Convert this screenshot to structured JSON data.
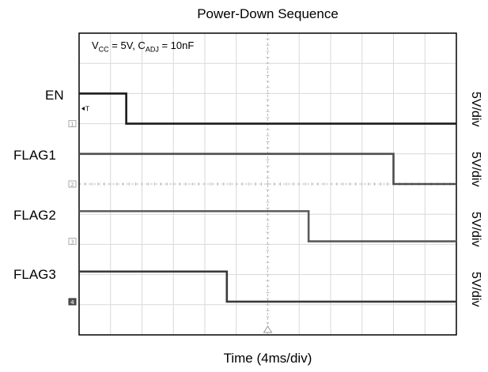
{
  "title": "Power-Down Sequence",
  "annotation": {
    "v_sym": "V",
    "v_sub": "CC",
    "v_val": " = 5V, ",
    "c_sym": "C",
    "c_sub": "ADJ",
    "c_val": " = 10nF"
  },
  "chart_data": {
    "type": "line",
    "title": "Power-Down Sequence",
    "xlabel": "Time (4ms/div)",
    "ylabel": "",
    "grid": true,
    "x_divisions": 12,
    "x_range_div": [
      0,
      12
    ],
    "trigger_marker": "T",
    "series": [
      {
        "name": "EN",
        "channel": "1",
        "scale": "5V/div",
        "high_v": 5,
        "low_v": 0,
        "falls_at_div": 1.5
      },
      {
        "name": "FLAG1",
        "channel": "2",
        "scale": "5V/div",
        "high_v": 5,
        "low_v": 0,
        "falls_at_div": 10.0
      },
      {
        "name": "FLAG2",
        "channel": "3",
        "scale": "5V/div",
        "high_v": 5,
        "low_v": 0,
        "falls_at_div": 7.3
      },
      {
        "name": "FLAG3",
        "channel": "4",
        "scale": "5V/div",
        "high_v": 5,
        "low_v": 0,
        "falls_at_div": 4.7
      }
    ]
  }
}
